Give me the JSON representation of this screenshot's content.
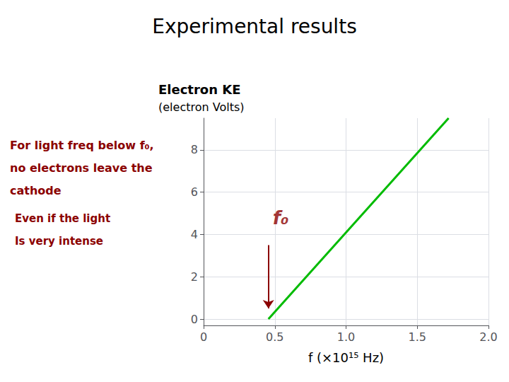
{
  "chart_data": {
    "type": "line",
    "title": "Experimental results",
    "ylabel": [
      "Electron KE",
      "(electron Volts)"
    ],
    "xlabel": "f (×10¹⁵ Hz)",
    "x": [
      0.455,
      1.72
    ],
    "values": [
      0,
      9.5
    ],
    "color": "#00bb00",
    "xlim": [
      0,
      2.0
    ],
    "xticks": [
      0,
      0.5,
      {
        "value": 1,
        "label": "1.0"
      },
      1.5,
      {
        "value": 2,
        "label": "2.0"
      }
    ],
    "ylim": [
      -0.3,
      9.5
    ],
    "yticks": [
      0,
      2,
      4,
      6,
      8
    ],
    "grid": true,
    "annotations": [
      {
        "text": "f₀",
        "x": 0.455,
        "y": 4.8,
        "color": "#8b0000"
      }
    ],
    "arrows": [
      {
        "x": [
          0.455,
          0.455
        ],
        "y": [
          3.5,
          0.5
        ],
        "color": "#8b0000"
      }
    ],
    "notes": [
      {
        "lines": [
          "For light freq below f₀,",
          "no electrons leave the",
          "cathode"
        ],
        "color": "#8b0000"
      },
      {
        "lines": [
          "Even if the light",
          "Is very intense"
        ],
        "color": "#8b0000"
      }
    ]
  }
}
